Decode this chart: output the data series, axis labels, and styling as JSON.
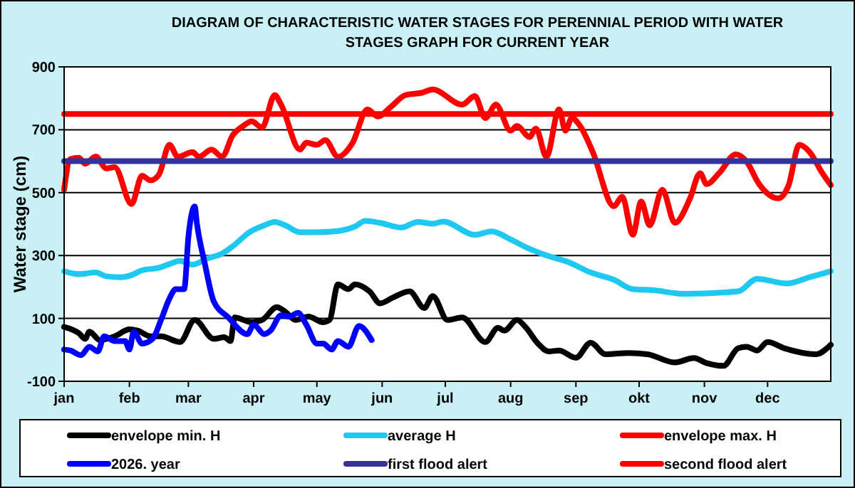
{
  "chart_data": {
    "type": "line",
    "title": "DIAGRAM OF CHARACTERISTIC WATER STAGES FOR PERENNIAL  PERIOD WITH WATER STAGES GRAPH FOR CURRENT  YEAR",
    "ylabel": "Water stage (cm)",
    "xlim": [
      "--01-01",
      "--12-31"
    ],
    "xticks": [
      {
        "value": "--01-01",
        "label": "jan"
      },
      {
        "value": "--02-01",
        "label": "feb"
      },
      {
        "value": "--03-01",
        "label": "mar"
      },
      {
        "value": "--04-01",
        "label": "apr"
      },
      {
        "value": "--05-01",
        "label": "may"
      },
      {
        "value": "--06-01",
        "label": "jun"
      },
      {
        "value": "--07-01",
        "label": "jul"
      },
      {
        "value": "--08-01",
        "label": "aug"
      },
      {
        "value": "--09-01",
        "label": "sep"
      },
      {
        "value": "--10-01",
        "label": "okt"
      },
      {
        "value": "--11-01",
        "label": "nov"
      },
      {
        "value": "--12-01",
        "label": "dec"
      }
    ],
    "ylim": [
      -100,
      900
    ],
    "yticks": [
      -100,
      100,
      300,
      500,
      700,
      900
    ],
    "grid": "y",
    "legend": "bottom",
    "line_style": "solid",
    "marker": "none",
    "series": [
      {
        "name": "envelope min. H",
        "color": "#000000",
        "x": [
          "--01-01",
          "--01-08",
          "--01-11",
          "--01-13",
          "--01-18",
          "--01-25",
          "--02-01",
          "--02-05",
          "--02-11",
          "--02-16",
          "--02-25",
          "--03-04",
          "--03-13",
          "--03-18",
          "--03-21",
          "--03-23",
          "--03-31",
          "--04-05",
          "--04-12",
          "--04-16",
          "--04-21",
          "--04-27",
          "--05-04",
          "--05-07",
          "--05-11",
          "--05-16",
          "--05-19",
          "--05-26",
          "--05-31",
          "--06-06",
          "--06-14",
          "--06-21",
          "--06-25",
          "--07-02",
          "--07-09",
          "--07-20",
          "--07-26",
          "--07-29",
          "--08-04",
          "--08-08",
          "--08-14",
          "--08-19",
          "--08-24",
          "--09-01",
          "--09-08",
          "--09-15",
          "--09-26",
          "--10-05",
          "--10-18",
          "--10-27",
          "--11-02",
          "--11-10",
          "--11-17",
          "--11-21",
          "--11-26",
          "--12-01",
          "--12-09",
          "--12-24",
          "--12-31"
        ],
        "values": [
          73,
          53,
          35,
          58,
          31,
          43,
          65,
          61,
          43,
          43,
          25,
          95,
          35,
          40,
          28,
          103,
          88,
          95,
          136,
          121,
          95,
          106,
          88,
          95,
          208,
          193,
          208,
          186,
          148,
          166,
          186,
          133,
          171,
          95,
          103,
          25,
          70,
          61,
          95,
          73,
          20,
          -5,
          -2,
          -25,
          23,
          -14,
          -10,
          -14,
          -40,
          -26,
          -42,
          -51,
          5,
          10,
          -2,
          25,
          5,
          -14,
          16
        ]
      },
      {
        "name": "average H",
        "color": "#1ec8f0",
        "x": [
          "--01-01",
          "--01-08",
          "--01-16",
          "--01-21",
          "--01-28",
          "--02-02",
          "--02-07",
          "--02-15",
          "--02-20",
          "--02-25",
          "--03-03",
          "--03-10",
          "--03-17",
          "--03-22",
          "--03-30",
          "--04-06",
          "--04-11",
          "--04-16",
          "--04-23",
          "--05-01",
          "--05-11",
          "--05-19",
          "--05-24",
          "--05-31",
          "--06-10",
          "--06-18",
          "--06-25",
          "--06-30",
          "--07-15",
          "--07-23",
          "--08-01",
          "--08-10",
          "--08-19",
          "--08-28",
          "--09-08",
          "--09-19",
          "--09-28",
          "--10-07",
          "--10-23",
          "--11-17",
          "--11-26",
          "--12-10",
          "--12-21",
          "--12-31"
        ],
        "values": [
          250,
          241,
          246,
          234,
          231,
          238,
          253,
          261,
          273,
          283,
          271,
          291,
          306,
          329,
          374,
          396,
          407,
          396,
          374,
          374,
          378,
          392,
          410,
          404,
          389,
          407,
          401,
          408,
          366,
          377,
          351,
          321,
          298,
          280,
          246,
          223,
          193,
          190,
          178,
          186,
          226,
          211,
          231,
          250
        ]
      },
      {
        "name": "envelope max. H",
        "color": "#ff0000",
        "x": [
          "--01-01",
          "--01-04",
          "--01-08",
          "--01-11",
          "--01-16",
          "--01-21",
          "--01-25",
          "--02-02",
          "--02-07",
          "--02-11",
          "--02-15",
          "--02-20",
          "--02-24",
          "--03-03",
          "--03-06",
          "--03-12",
          "--03-17",
          "--03-22",
          "--03-27",
          "--03-31",
          "--04-05",
          "--04-11",
          "--04-14",
          "--04-23",
          "--04-26",
          "--05-01",
          "--05-05",
          "--05-11",
          "--05-18",
          "--05-25",
          "--05-30",
          "--06-05",
          "--06-12",
          "--06-20",
          "--06-25",
          "--07-09",
          "--07-15",
          "--07-20",
          "--07-25",
          "--08-01",
          "--08-04",
          "--08-10",
          "--08-13",
          "--08-18",
          "--08-24",
          "--08-27",
          "--08-30",
          "--09-03",
          "--09-09",
          "--09-19",
          "--09-23",
          "--09-28",
          "--10-02",
          "--10-06",
          "--10-12",
          "--10-18",
          "--10-25",
          "--10-30",
          "--11-02",
          "--11-08",
          "--11-16",
          "--11-21",
          "--11-27",
          "--12-06",
          "--12-11",
          "--12-16",
          "--12-21",
          "--12-27",
          "--12-31"
        ],
        "values": [
          510,
          607,
          611,
          592,
          615,
          577,
          581,
          464,
          554,
          539,
          557,
          652,
          614,
          629,
          614,
          637,
          614,
          682,
          712,
          727,
          707,
          810,
          780,
          637,
          659,
          652,
          667,
          614,
          659,
          765,
          742,
          772,
          810,
          818,
          828,
          780,
          807,
          737,
          780,
          697,
          712,
          677,
          704,
          614,
          765,
          697,
          737,
          712,
          629,
          457,
          487,
          366,
          472,
          396,
          509,
          404,
          479,
          562,
          527,
          562,
          622,
          599,
          527,
          482,
          524,
          652,
          629,
          562,
          524
        ]
      },
      {
        "name": "2026. year",
        "color": "#0000ff",
        "x": [
          "--01-01",
          "--01-04",
          "--01-09",
          "--01-13",
          "--01-17",
          "--01-20",
          "--01-25",
          "--01-30",
          "--02-01",
          "--02-03",
          "--02-07",
          "--02-12",
          "--02-16",
          "--02-20",
          "--02-23",
          "--02-27",
          "--03-01",
          "--03-04",
          "--03-05",
          "--03-09",
          "--03-13",
          "--03-20",
          "--03-29",
          "--04-01",
          "--04-06",
          "--04-09",
          "--04-14",
          "--04-18",
          "--04-22",
          "--04-26",
          "--05-01",
          "--05-04",
          "--05-08",
          "--05-11",
          "--05-16",
          "--05-21",
          "--05-27"
        ],
        "values": [
          1,
          -2,
          -17,
          10,
          -5,
          43,
          28,
          28,
          1,
          58,
          20,
          35,
          95,
          163,
          193,
          193,
          359,
          456,
          404,
          268,
          155,
          103,
          50,
          80,
          50,
          61,
          110,
          106,
          118,
          80,
          20,
          20,
          1,
          28,
          10,
          76,
          31
        ]
      },
      {
        "name": "first flood alert",
        "color": "#333399",
        "x": [
          "--01-01",
          "--12-31"
        ],
        "values": [
          600,
          600
        ]
      },
      {
        "name": "second flood alert",
        "color": "#ff0000",
        "x": [
          "--01-01",
          "--12-31"
        ],
        "values": [
          750,
          750
        ]
      }
    ]
  }
}
